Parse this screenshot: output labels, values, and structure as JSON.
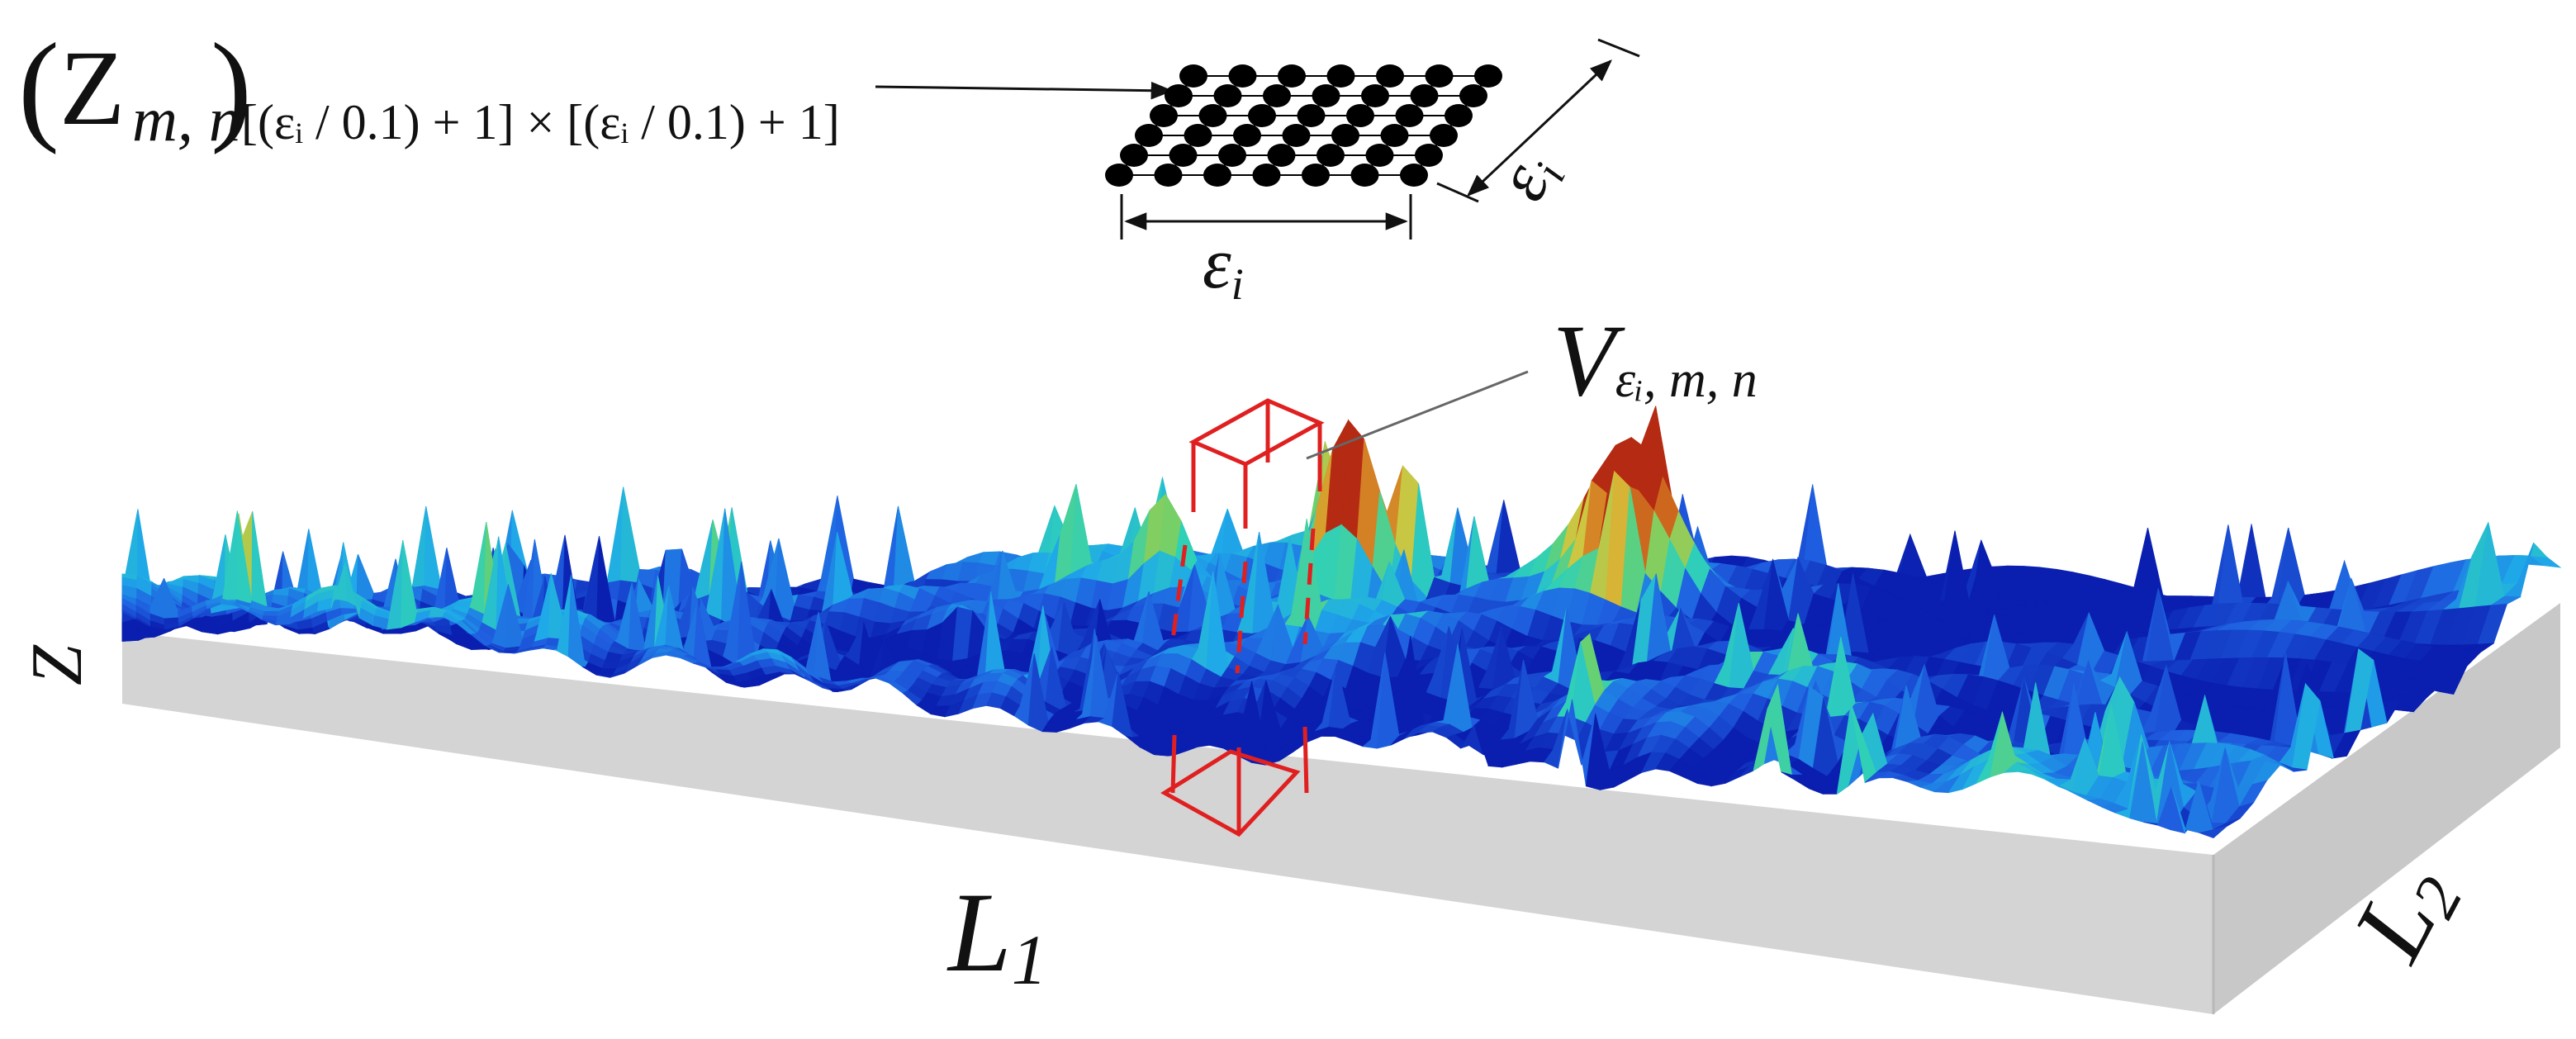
{
  "formula": {
    "open_paren": "(",
    "base_symbol": "Z",
    "base_subscript": "m, n",
    "close_paren": ")",
    "matrix_size": "[(εᵢ / 0.1) + 1] × [(εᵢ / 0.1) + 1]"
  },
  "grid": {
    "rows": 6,
    "cols": 7,
    "dot_color": "#000000",
    "line_color": "#000000",
    "width_label_symbol": "ε",
    "width_label_subscript": "i",
    "depth_label_symbol": "ε",
    "depth_label_subscript": "i"
  },
  "volume_label": {
    "symbol": "V",
    "subscript": "εᵢ, m, n"
  },
  "axes": {
    "z_label": "Z",
    "l1_symbol": "L",
    "l1_subscript": "1",
    "l2_symbol": "L",
    "l2_subscript": "2"
  },
  "surface": {
    "colormap": [
      "#0a1fb0",
      "#1f5fe0",
      "#1fa9e8",
      "#2fd0b8",
      "#6ed06a",
      "#d8c53c",
      "#d47a22",
      "#b52a12"
    ],
    "base_color": "#d4d4d4",
    "base_edge_color": "#bcbcbc"
  },
  "volume_box": {
    "color": "#e02020"
  }
}
